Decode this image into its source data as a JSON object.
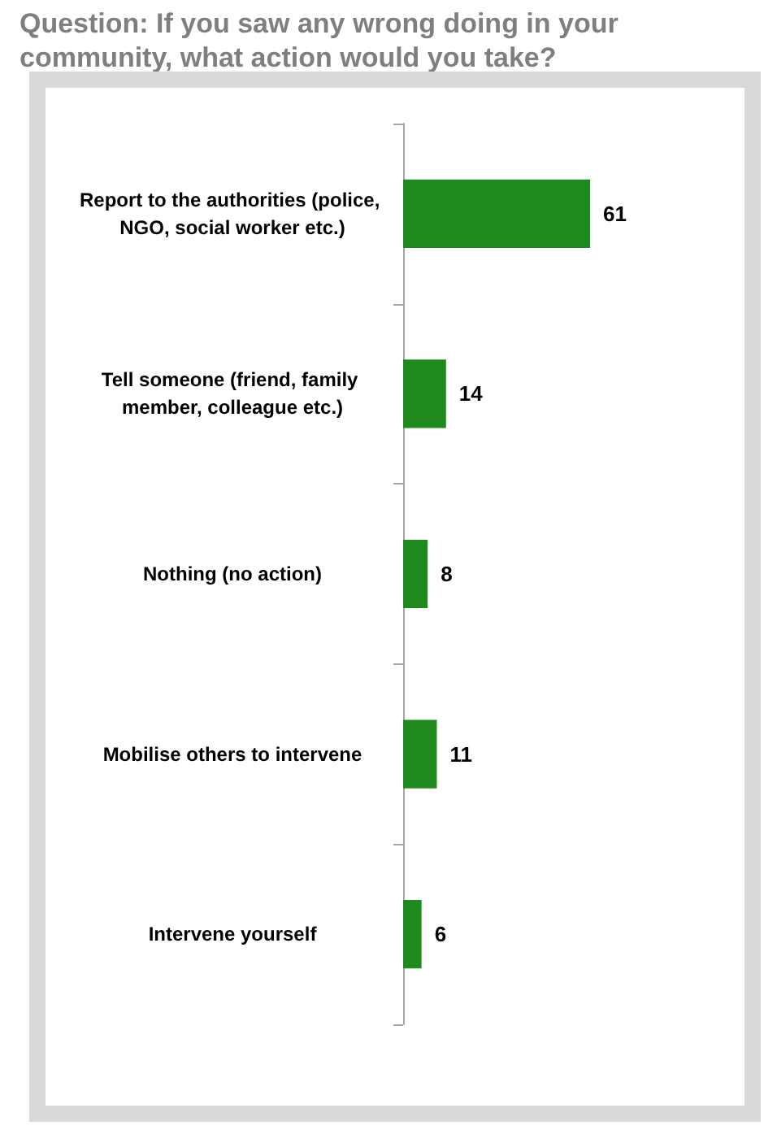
{
  "chart_data": {
    "type": "bar",
    "orientation": "horizontal",
    "title": "Question: If you saw any wrong doing in your community, what action would you take?",
    "categories": [
      "Report to the authorities (police, NGO, social worker etc.)",
      "Tell someone (friend, family member, colleague etc.)",
      "Nothing (no action)",
      "Mobilise others to intervene",
      "Intervene yourself"
    ],
    "values": [
      61,
      14,
      8,
      11,
      6
    ],
    "color": "#1e8a1e",
    "data_labels": true
  }
}
